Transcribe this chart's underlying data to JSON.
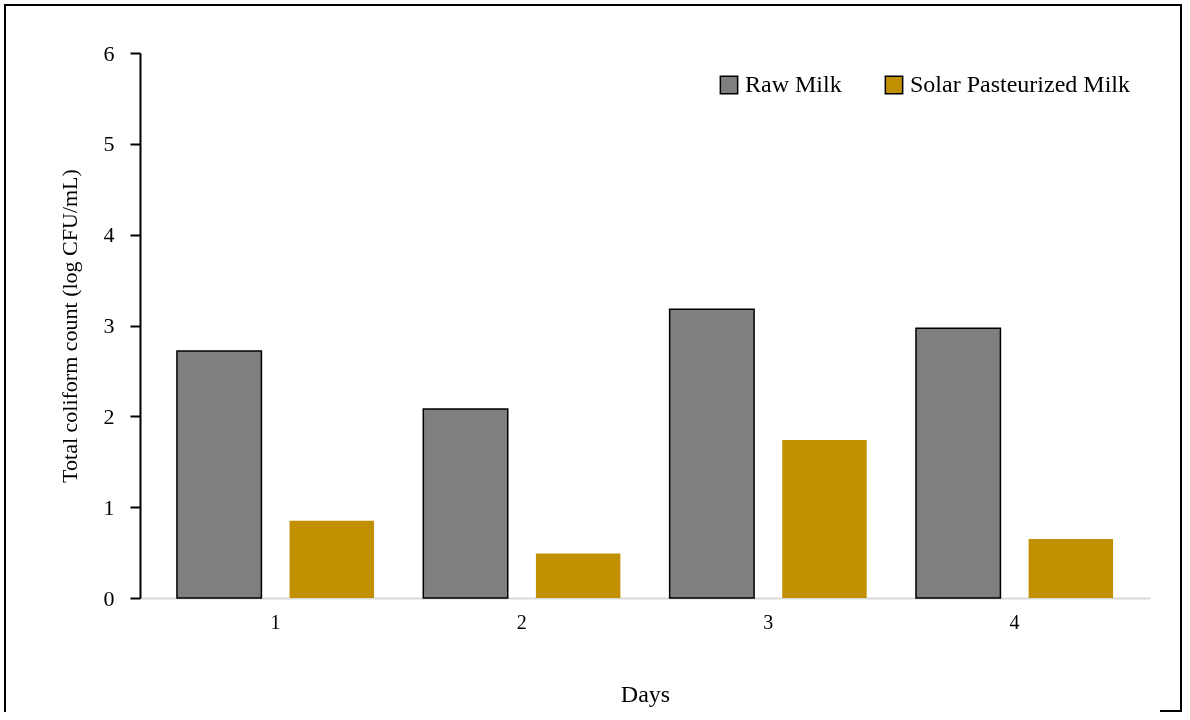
{
  "chart_data": {
    "type": "bar",
    "xlabel": "Days",
    "ylabel": "Total coliform count (log CFU/mL)",
    "categories": [
      "1",
      "2",
      "3",
      "4"
    ],
    "series": [
      {
        "name": "Raw Milk",
        "color": "#7f7f7f",
        "values": [
          2.72,
          2.08,
          3.18,
          2.97
        ]
      },
      {
        "name": "Solar Pasteurized Milk",
        "color": "#c09000",
        "values": [
          0.85,
          0.49,
          1.74,
          0.65
        ]
      }
    ],
    "ylim": [
      0,
      6
    ],
    "yticks": [
      0,
      1,
      2,
      3,
      4,
      5,
      6
    ],
    "grid": false,
    "legend": "top right"
  }
}
